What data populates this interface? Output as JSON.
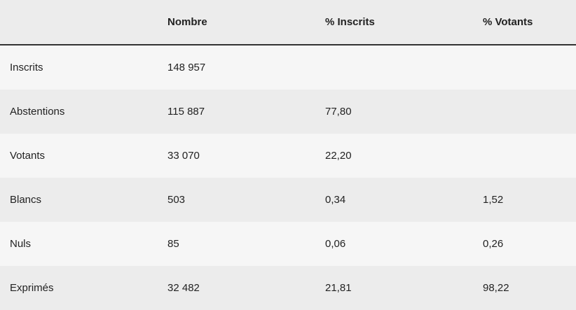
{
  "table": {
    "header": [
      null,
      "Nombre",
      "% Inscrits",
      "% Votants"
    ],
    "rows": [
      [
        "Inscrits",
        "148 957",
        null,
        null
      ],
      [
        "Abstentions",
        "115 887",
        "77,80",
        null
      ],
      [
        "Votants",
        "33 070",
        "22,20",
        null
      ],
      [
        "Blancs",
        "503",
        "0,34",
        "1,52"
      ],
      [
        "Nuls",
        "85",
        "0,06",
        "0,26"
      ],
      [
        "Exprimés",
        "32 482",
        "21,81",
        "98,22"
      ]
    ]
  }
}
